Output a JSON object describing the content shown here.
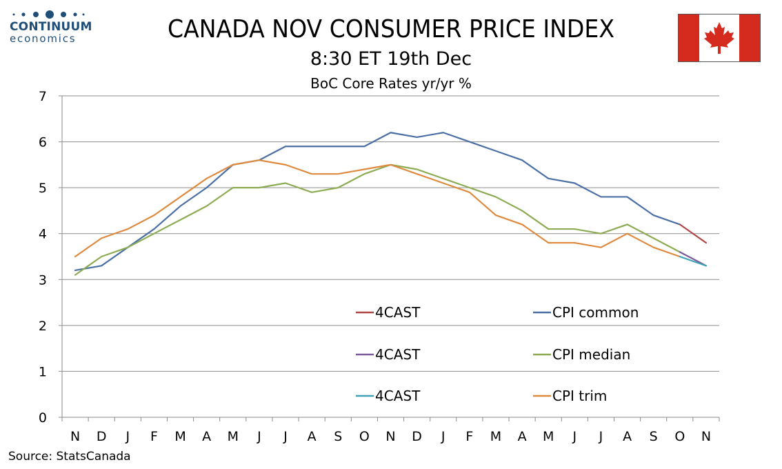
{
  "logo": {
    "word": "CONTINUUM",
    "sub": "economics"
  },
  "header": {
    "title": "CANADA NOV CONSUMER PRICE INDEX",
    "subtitle": "8:30 ET 19th Dec",
    "chart_subtitle": "BoC Core Rates yr/yr %"
  },
  "flag": {
    "name": "canada-flag-icon",
    "red": "#d52b1e"
  },
  "source": "Source: StatsCanada",
  "chart_data": {
    "type": "line",
    "categories": [
      "N",
      "D",
      "J",
      "F",
      "M",
      "A",
      "M",
      "J",
      "J",
      "A",
      "S",
      "O",
      "N",
      "D",
      "J",
      "F",
      "M",
      "A",
      "M",
      "J",
      "J",
      "A",
      "S",
      "O",
      "N"
    ],
    "ylim": [
      0,
      7
    ],
    "yticks": [
      "0",
      "1",
      "2",
      "3",
      "4",
      "5",
      "6",
      "7"
    ],
    "grid": true,
    "legend_position": "center-bottom",
    "series": [
      {
        "name": "CPI common",
        "color": "#4a6fa5",
        "values": [
          3.2,
          3.3,
          3.7,
          4.1,
          4.6,
          5.0,
          5.5,
          5.6,
          5.9,
          5.9,
          5.9,
          5.9,
          6.2,
          6.1,
          6.2,
          6.0,
          5.8,
          5.6,
          5.2,
          5.1,
          4.8,
          4.8,
          4.4,
          4.2,
          null
        ]
      },
      {
        "name": "CPI median",
        "color": "#8cab52",
        "values": [
          3.1,
          3.5,
          3.7,
          4.0,
          4.3,
          4.6,
          5.0,
          5.0,
          5.1,
          4.9,
          5.0,
          5.3,
          5.5,
          5.4,
          5.2,
          5.0,
          4.8,
          4.5,
          4.1,
          4.1,
          4.0,
          4.2,
          3.9,
          3.6,
          null
        ]
      },
      {
        "name": "CPI trim",
        "color": "#dd8a3e",
        "values": [
          3.5,
          3.9,
          4.1,
          4.4,
          4.8,
          5.2,
          5.5,
          5.6,
          5.5,
          5.3,
          5.3,
          5.4,
          5.5,
          5.3,
          5.1,
          4.9,
          4.4,
          4.2,
          3.8,
          3.8,
          3.7,
          4.0,
          3.7,
          3.5,
          null
        ]
      },
      {
        "name": "4CAST",
        "color": "#b04545",
        "values": [
          null,
          null,
          null,
          null,
          null,
          null,
          null,
          null,
          null,
          null,
          null,
          null,
          null,
          null,
          null,
          null,
          null,
          null,
          null,
          null,
          null,
          null,
          null,
          4.2,
          3.8
        ]
      },
      {
        "name": "4CAST",
        "color": "#7b5b9a",
        "values": [
          null,
          null,
          null,
          null,
          null,
          null,
          null,
          null,
          null,
          null,
          null,
          null,
          null,
          null,
          null,
          null,
          null,
          null,
          null,
          null,
          null,
          null,
          null,
          3.6,
          3.3
        ]
      },
      {
        "name": "4CAST",
        "color": "#3fa3b5",
        "values": [
          null,
          null,
          null,
          null,
          null,
          null,
          null,
          null,
          null,
          null,
          null,
          null,
          null,
          null,
          null,
          null,
          null,
          null,
          null,
          null,
          null,
          null,
          null,
          3.5,
          3.3
        ]
      }
    ],
    "legend": [
      {
        "label": "4CAST",
        "color": "#b04545"
      },
      {
        "label": "CPI common",
        "color": "#4a6fa5"
      },
      {
        "label": "4CAST",
        "color": "#7b5b9a"
      },
      {
        "label": "CPI median",
        "color": "#8cab52"
      },
      {
        "label": "4CAST",
        "color": "#3fa3b5"
      },
      {
        "label": "CPI trim",
        "color": "#dd8a3e"
      }
    ]
  }
}
